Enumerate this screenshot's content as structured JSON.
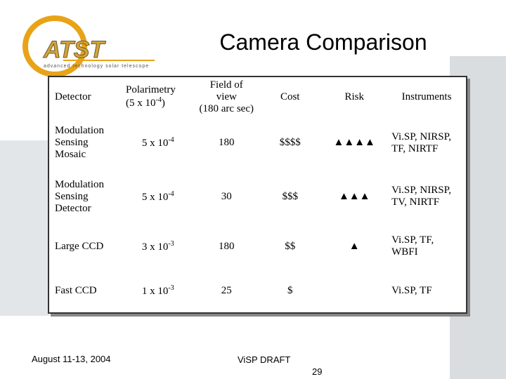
{
  "logo": {
    "name": "ATST",
    "tagline": "advanced technology solar telescope"
  },
  "title": "Camera Comparison",
  "table": {
    "header": [
      {
        "text": "Detector"
      },
      {
        "text": "Polarimetry",
        "detail": "(5 x 10",
        "exponent": "-4",
        "detail_end": ")"
      },
      {
        "text": "Field of view",
        "detail": "(180 arc sec)"
      },
      {
        "text": "Cost"
      },
      {
        "text": "Risk"
      },
      {
        "text": "Instruments"
      }
    ],
    "rows": [
      [
        {
          "text": "Modulation Sensing Mosaic"
        },
        {
          "base": "5 x 10",
          "exponent": "-4"
        },
        {
          "text": "180"
        },
        {
          "text": "$$$$"
        },
        {
          "text": "▲▲▲▲"
        },
        {
          "text": "Vi.SP, NIRSP, TF, NIRTF"
        }
      ],
      [
        {
          "text": "Modulation Sensing Detector"
        },
        {
          "base": "5 x 10",
          "exponent": "-4"
        },
        {
          "text": "30"
        },
        {
          "text": "$$$"
        },
        {
          "text": "▲▲▲"
        },
        {
          "text": "Vi.SP, NIRSP, TV, NIRTF"
        }
      ],
      [
        {
          "text": "Large CCD"
        },
        {
          "base": "3 x 10",
          "exponent": "-3"
        },
        {
          "text": "180"
        },
        {
          "text": "$$"
        },
        {
          "text": "▲"
        },
        {
          "text": "Vi.SP, TF, WBFI"
        }
      ],
      [
        {
          "text": "Fast CCD"
        },
        {
          "base": "1 x 10",
          "exponent": "-3"
        },
        {
          "text": "25"
        },
        {
          "text": "$"
        },
        {
          "text": ""
        },
        {
          "text": "Vi.SP, TF"
        }
      ]
    ]
  },
  "footer": {
    "date": "August 11-13, 2004",
    "draft": "ViSP DRAFT",
    "page": "29"
  }
}
